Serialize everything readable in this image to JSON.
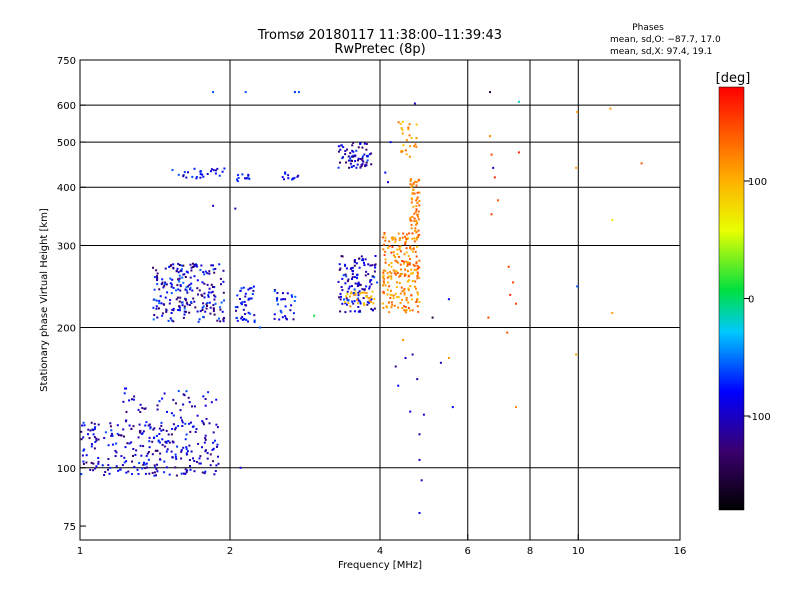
{
  "chart_data": {
    "type": "scatter",
    "title": "Tromsø 20180117 11:38:00–11:39:43",
    "subtitle": "RwPretec (8p)",
    "xlabel": "Frequency [MHz]",
    "ylabel": "Stationary phase Virtual Height [km]",
    "x_scale": "log2",
    "y_scale": "log",
    "xlim": [
      1,
      16
    ],
    "ylim": [
      70,
      750
    ],
    "x_ticks": [
      1,
      2,
      4,
      6,
      8,
      10,
      16
    ],
    "y_ticks": [
      75,
      100,
      200,
      300,
      400,
      500,
      600,
      750
    ],
    "x_grid": [
      2,
      4,
      6,
      8,
      10
    ],
    "y_grid": [
      100,
      200,
      300,
      400,
      500,
      600
    ],
    "info": {
      "heading": "Phases",
      "line_o": "mean, sd,O: −87.7, 17.0",
      "line_x": "mean, sd,X: 97.4, 19.1"
    },
    "colorbar": {
      "label": "[deg]",
      "min": -180,
      "max": 180,
      "ticks": [
        100,
        0,
        -100
      ]
    },
    "clusters": [
      {
        "x": [
          1.0,
          1.9
        ],
        "y": [
          96,
          125
        ],
        "phase": [
          -135,
          -60
        ],
        "count": 260
      },
      {
        "x": [
          1.22,
          1.9
        ],
        "y": [
          118,
          148
        ],
        "phase": [
          -130,
          -60
        ],
        "count": 60
      },
      {
        "x": [
          1.4,
          1.95
        ],
        "y": [
          205,
          275
        ],
        "phase": [
          -140,
          -50
        ],
        "count": 230
      },
      {
        "x": [
          2.05,
          2.25
        ],
        "y": [
          205,
          245
        ],
        "phase": [
          -120,
          -50
        ],
        "count": 45
      },
      {
        "x": [
          2.45,
          2.75
        ],
        "y": [
          208,
          245
        ],
        "phase": [
          -120,
          -50
        ],
        "count": 30
      },
      {
        "x": [
          1.5,
          1.95
        ],
        "y": [
          418,
          440
        ],
        "phase": [
          -110,
          -55
        ],
        "count": 28
      },
      {
        "x": [
          2.05,
          2.2
        ],
        "y": [
          412,
          432
        ],
        "phase": [
          -110,
          -55
        ],
        "count": 12
      },
      {
        "x": [
          2.55,
          2.75
        ],
        "y": [
          415,
          432
        ],
        "phase": [
          -110,
          -60
        ],
        "count": 12
      },
      {
        "x": [
          3.3,
          3.95
        ],
        "y": [
          215,
          285
        ],
        "phase": [
          -140,
          -60
        ],
        "count": 130
      },
      {
        "x": [
          3.4,
          3.9
        ],
        "y": [
          222,
          240
        ],
        "phase": [
          80,
          120
        ],
        "count": 30
      },
      {
        "x": [
          3.3,
          3.85
        ],
        "y": [
          440,
          500
        ],
        "phase": [
          -140,
          -60
        ],
        "count": 70
      },
      {
        "x": [
          4.05,
          4.8
        ],
        "y": [
          215,
          320
        ],
        "phase": [
          90,
          150
        ],
        "count": 220
      },
      {
        "x": [
          4.6,
          4.8
        ],
        "y": [
          320,
          420
        ],
        "phase": [
          100,
          150
        ],
        "count": 60
      },
      {
        "x": [
          4.3,
          4.8
        ],
        "y": [
          460,
          560
        ],
        "phase": [
          90,
          130
        ],
        "count": 25
      }
    ],
    "points": [
      {
        "x": 1.85,
        "y": 640,
        "phase": -60
      },
      {
        "x": 2.15,
        "y": 640,
        "phase": -60
      },
      {
        "x": 2.75,
        "y": 640,
        "phase": -60
      },
      {
        "x": 2.7,
        "y": 640,
        "phase": -70
      },
      {
        "x": 1.85,
        "y": 365,
        "phase": -100
      },
      {
        "x": 2.05,
        "y": 360,
        "phase": -110
      },
      {
        "x": 2.1,
        "y": 100,
        "phase": -90
      },
      {
        "x": 2.3,
        "y": 200,
        "phase": -60
      },
      {
        "x": 2.95,
        "y": 212,
        "phase": 10
      },
      {
        "x": 4.7,
        "y": 605,
        "phase": -100
      },
      {
        "x": 4.1,
        "y": 430,
        "phase": -80
      },
      {
        "x": 4.15,
        "y": 410,
        "phase": -100
      },
      {
        "x": 4.2,
        "y": 500,
        "phase": -90
      },
      {
        "x": 4.3,
        "y": 165,
        "phase": -120
      },
      {
        "x": 4.5,
        "y": 172,
        "phase": -100
      },
      {
        "x": 4.75,
        "y": 155,
        "phase": -110
      },
      {
        "x": 4.8,
        "y": 118,
        "phase": -110
      },
      {
        "x": 4.8,
        "y": 104,
        "phase": -100
      },
      {
        "x": 4.85,
        "y": 94,
        "phase": -100
      },
      {
        "x": 4.8,
        "y": 80,
        "phase": -90
      },
      {
        "x": 4.65,
        "y": 175,
        "phase": -110
      },
      {
        "x": 4.45,
        "y": 188,
        "phase": 110
      },
      {
        "x": 4.6,
        "y": 132,
        "phase": -90
      },
      {
        "x": 4.9,
        "y": 130,
        "phase": -95
      },
      {
        "x": 4.35,
        "y": 150,
        "phase": -80
      },
      {
        "x": 5.5,
        "y": 172,
        "phase": 110
      },
      {
        "x": 5.5,
        "y": 230,
        "phase": -80
      },
      {
        "x": 5.3,
        "y": 168,
        "phase": -100
      },
      {
        "x": 5.1,
        "y": 210,
        "phase": -150
      },
      {
        "x": 5.6,
        "y": 135,
        "phase": -80
      },
      {
        "x": 6.65,
        "y": 640,
        "phase": -150
      },
      {
        "x": 6.65,
        "y": 515,
        "phase": 120
      },
      {
        "x": 6.7,
        "y": 470,
        "phase": 150
      },
      {
        "x": 6.75,
        "y": 440,
        "phase": -100
      },
      {
        "x": 6.8,
        "y": 420,
        "phase": 160
      },
      {
        "x": 6.7,
        "y": 350,
        "phase": 150
      },
      {
        "x": 6.6,
        "y": 210,
        "phase": 150
      },
      {
        "x": 6.9,
        "y": 375,
        "phase": 140
      },
      {
        "x": 7.25,
        "y": 270,
        "phase": 150
      },
      {
        "x": 7.3,
        "y": 235,
        "phase": 160
      },
      {
        "x": 7.4,
        "y": 250,
        "phase": 155
      },
      {
        "x": 7.5,
        "y": 225,
        "phase": 150
      },
      {
        "x": 7.2,
        "y": 195,
        "phase": 140
      },
      {
        "x": 7.5,
        "y": 135,
        "phase": 120
      },
      {
        "x": 7.6,
        "y": 610,
        "phase": -20
      },
      {
        "x": 7.6,
        "y": 475,
        "phase": 165
      },
      {
        "x": 9.95,
        "y": 580,
        "phase": 110
      },
      {
        "x": 9.9,
        "y": 440,
        "phase": 100
      },
      {
        "x": 9.95,
        "y": 245,
        "phase": -60
      },
      {
        "x": 9.9,
        "y": 175,
        "phase": 105
      },
      {
        "x": 11.6,
        "y": 590,
        "phase": 110
      },
      {
        "x": 11.7,
        "y": 340,
        "phase": 70
      },
      {
        "x": 11.7,
        "y": 215,
        "phase": 110
      },
      {
        "x": 13.4,
        "y": 450,
        "phase": 140
      }
    ]
  }
}
